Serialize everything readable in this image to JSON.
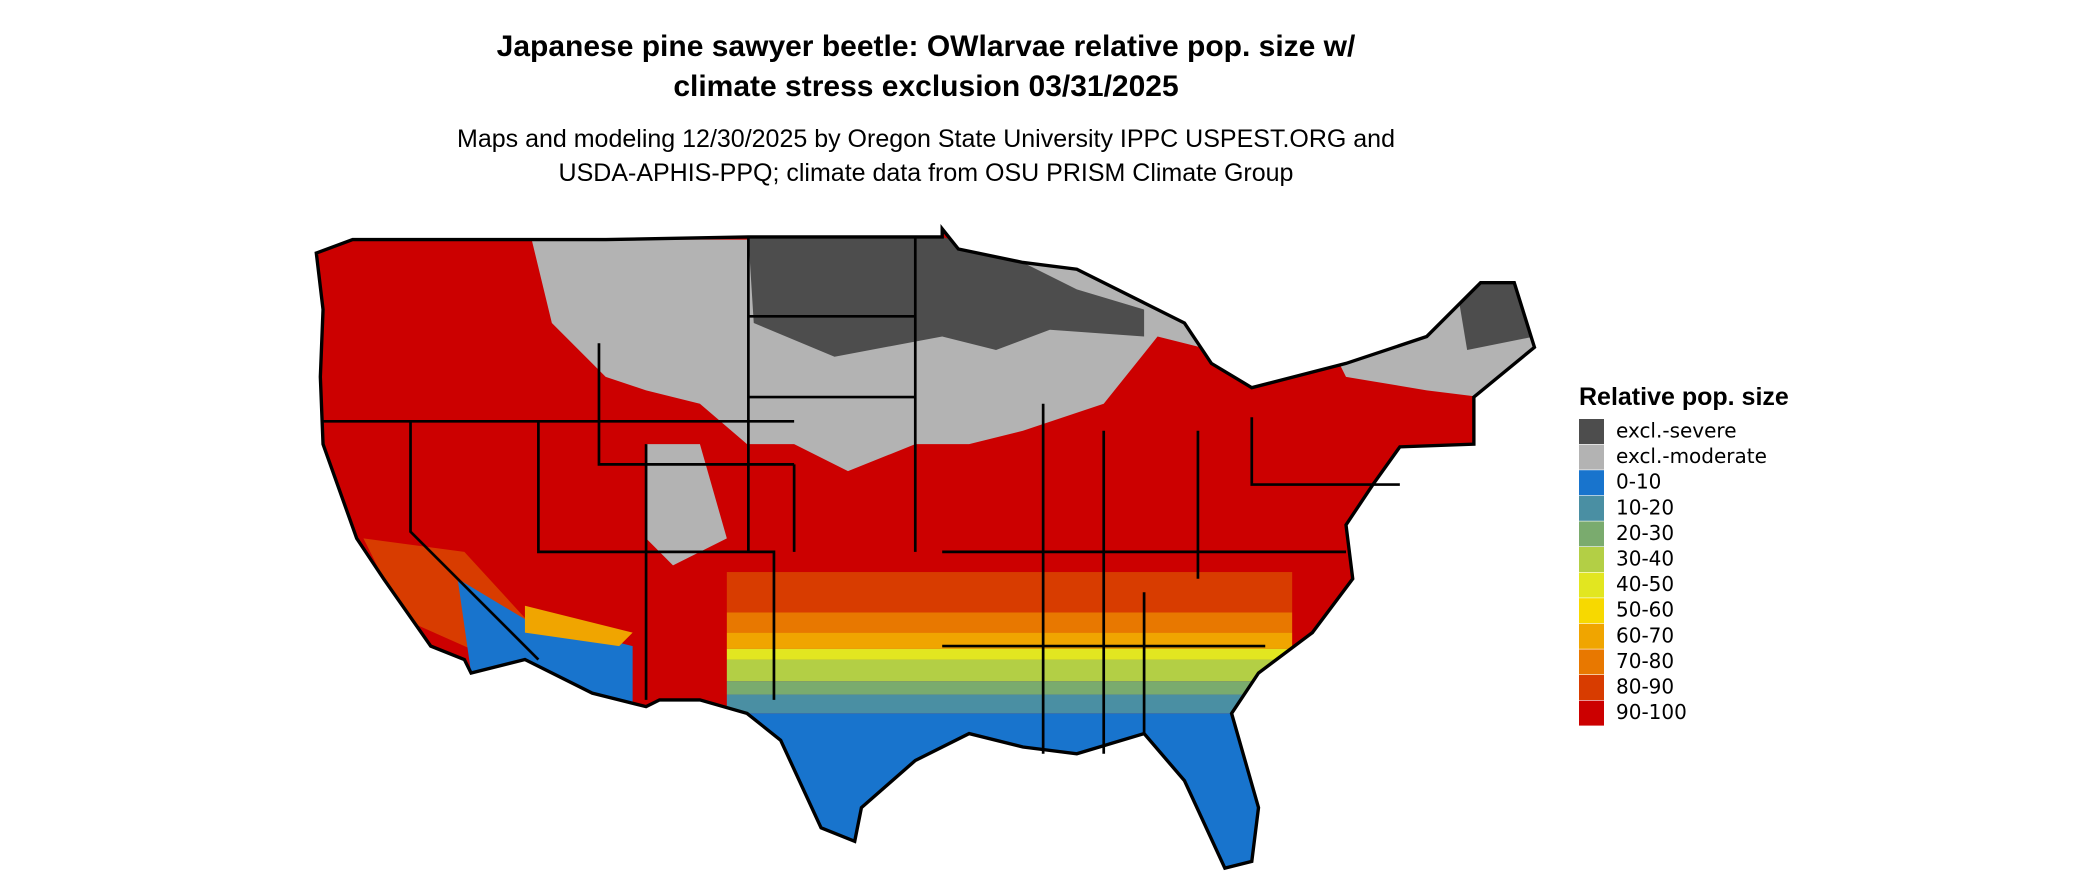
{
  "header": {
    "title_lines": [
      "Japanese pine sawyer beetle: OWlarvae relative pop. size w/",
      "climate stress exclusion 03/31/2025"
    ],
    "subtitle_lines": [
      "Maps and modeling 12/30/2025 by Oregon State University IPPC USPEST.ORG and",
      "USDA-APHIS-PPQ; climate data from OSU PRISM Climate Group"
    ]
  },
  "legend": {
    "title": "Relative pop. size",
    "items": [
      {
        "label": "excl.-severe",
        "color": "#4d4d4d"
      },
      {
        "label": "excl.-moderate",
        "color": "#b3b3b3"
      },
      {
        "label": "0-10",
        "color": "#1874cd"
      },
      {
        "label": "10-20",
        "color": "#4a8fa3"
      },
      {
        "label": "20-30",
        "color": "#7aab6e"
      },
      {
        "label": "30-40",
        "color": "#b3cf45"
      },
      {
        "label": "40-50",
        "color": "#e2e620"
      },
      {
        "label": "50-60",
        "color": "#f7d900"
      },
      {
        "label": "60-70",
        "color": "#f0a500"
      },
      {
        "label": "70-80",
        "color": "#e87800"
      },
      {
        "label": "80-90",
        "color": "#d83c00"
      },
      {
        "label": "90-100",
        "color": "#cc0000"
      }
    ]
  }
}
